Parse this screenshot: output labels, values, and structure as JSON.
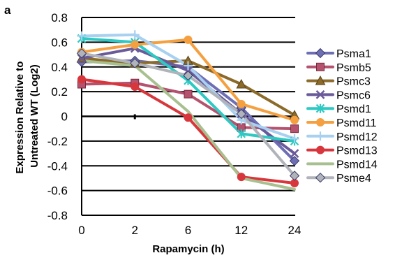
{
  "chart_data": {
    "type": "line",
    "panel_label": "a",
    "xlabel": "Rapamycin (h)",
    "ylabel_lines": [
      "Expression Relative to",
      "Untreated WT (Log2)"
    ],
    "categories": [
      "0",
      "2",
      "6",
      "12",
      "24"
    ],
    "ylim": [
      -0.8,
      0.8
    ],
    "yticks": [
      "0.8",
      "0.6",
      "0.4",
      "0.2",
      "0",
      "-0.2",
      "-0.4",
      "-0.6",
      "-0.8"
    ],
    "ytick_values": [
      0.8,
      0.6,
      0.4,
      0.2,
      0,
      -0.2,
      -0.4,
      -0.6,
      -0.8
    ],
    "grid": "horizontal",
    "legend_position": "right",
    "series": [
      {
        "name": "Psma1",
        "color": "#6E6EB5",
        "marker": "diamond",
        "values": [
          0.44,
          0.45,
          0.4,
          0.07,
          -0.36
        ]
      },
      {
        "name": "Psmb5",
        "color": "#B5526E",
        "marker": "square",
        "values": [
          0.26,
          0.27,
          0.18,
          -0.09,
          -0.1
        ]
      },
      {
        "name": "Psmc3",
        "color": "#8C6A2A",
        "marker": "triangle",
        "values": [
          0.47,
          0.43,
          0.45,
          0.26,
          0.01
        ]
      },
      {
        "name": "Psmc6",
        "color": "#6A5A9A",
        "marker": "x",
        "values": [
          0.47,
          0.55,
          0.37,
          0.02,
          -0.3
        ]
      },
      {
        "name": "Psmd1",
        "color": "#2EC9C3",
        "marker": "star",
        "values": [
          0.63,
          0.6,
          0.29,
          -0.14,
          -0.2
        ]
      },
      {
        "name": "Psmd11",
        "color": "#F5A040",
        "marker": "circle",
        "values": [
          0.52,
          0.58,
          0.62,
          0.1,
          -0.03
        ]
      },
      {
        "name": "Psmd12",
        "color": "#A8D0F0",
        "marker": "plus",
        "values": [
          0.65,
          0.66,
          0.41,
          -0.03,
          -0.18
        ]
      },
      {
        "name": "Psmd13",
        "color": "#D7373C",
        "marker": "circle",
        "values": [
          0.3,
          0.24,
          -0.01,
          -0.49,
          -0.54
        ]
      },
      {
        "name": "Psmd14",
        "color": "#A8C090",
        "marker": "none",
        "values": [
          0.45,
          0.41,
          0.04,
          -0.5,
          -0.59
        ]
      },
      {
        "name": "Psme4",
        "color": "#B0B4BA",
        "marker": "diamond",
        "values": [
          0.51,
          0.43,
          0.33,
          0.02,
          -0.48
        ]
      }
    ]
  }
}
